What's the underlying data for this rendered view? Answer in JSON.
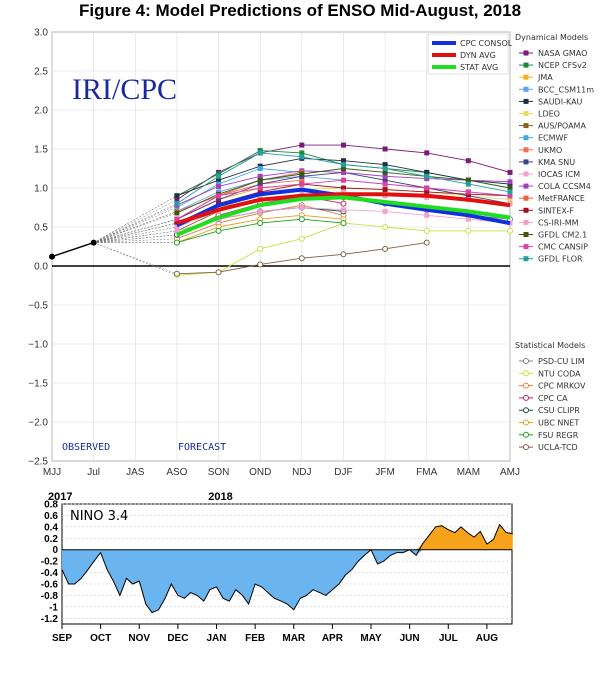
{
  "title": "Figure 4:  Model Predictions of ENSO Mid-August, 2018",
  "chart_data": [
    {
      "type": "line",
      "logo": "IRI/CPC",
      "observed_label": "OBSERVED",
      "forecast_label": "FORECAST",
      "categories": [
        "MJJ",
        "Jul",
        "JAS",
        "ASO",
        "SON",
        "OND",
        "NDJ",
        "DJF",
        "JFM",
        "FMA",
        "MAM",
        "AMJ"
      ],
      "ylim": [
        -2.5,
        3.0
      ],
      "yticks": [
        "3.0",
        "2.5",
        "2.0",
        "1.5",
        "1.0",
        "0.5",
        "0.0",
        "−0.5",
        "−1.0",
        "−1.5",
        "−2.0",
        "−2.5"
      ],
      "ytick_values": [
        3.0,
        2.5,
        2.0,
        1.5,
        1.0,
        0.5,
        0.0,
        -0.5,
        -1.0,
        -1.5,
        -2.0,
        -2.5
      ],
      "observed": [
        0.12,
        0.3
      ],
      "dynamical_legend_title": "Dynamical Models",
      "statistical_legend_title": "Statistical Models",
      "main_series": [
        {
          "name": "CPC CONSOL",
          "color": "#1030e0",
          "values": [
            null,
            null,
            null,
            0.52,
            0.78,
            0.92,
            0.98,
            0.9,
            0.8,
            0.72,
            0.65,
            0.55
          ]
        },
        {
          "name": "DYN AVG",
          "color": "#e01010",
          "values": [
            null,
            null,
            null,
            0.55,
            0.72,
            0.85,
            0.9,
            0.92,
            0.92,
            0.9,
            0.85,
            0.78
          ]
        },
        {
          "name": "STAT AVG",
          "color": "#20dd20",
          "values": [
            null,
            null,
            null,
            0.4,
            0.62,
            0.78,
            0.86,
            0.88,
            0.82,
            0.76,
            0.7,
            0.62
          ]
        }
      ],
      "dynamical_series": [
        {
          "name": "NASA GMAO",
          "color": "#7a1a7a",
          "values": [
            null,
            null,
            null,
            0.85,
            1.2,
            1.45,
            1.55,
            1.55,
            1.5,
            1.45,
            1.35,
            1.2
          ]
        },
        {
          "name": "NCEP CFSv2",
          "color": "#1a8a3a",
          "values": [
            null,
            null,
            null,
            0.9,
            1.18,
            1.48,
            1.45,
            1.3,
            1.25,
            1.2,
            1.1,
            1.0
          ]
        },
        {
          "name": "JMA",
          "color": "#f0b020",
          "values": [
            null,
            null,
            null,
            0.6,
            0.85,
            1.0,
            1.05,
            null,
            null,
            null,
            null,
            null
          ]
        },
        {
          "name": "BCC_CSM11m",
          "color": "#60a0f0",
          "values": [
            null,
            null,
            null,
            0.7,
            0.95,
            1.1,
            1.15,
            1.1,
            1.05,
            1.0,
            0.95,
            0.9
          ]
        },
        {
          "name": "SAUDI-KAU",
          "color": "#203040",
          "values": [
            null,
            null,
            null,
            0.9,
            1.1,
            1.28,
            1.38,
            1.35,
            1.3,
            1.2,
            1.1,
            1.05
          ]
        },
        {
          "name": "LDEO",
          "color": "#e0e060",
          "values": [
            null,
            null,
            null,
            0.55,
            0.75,
            0.9,
            0.98,
            1.0,
            0.98,
            0.95,
            0.9,
            0.85
          ]
        },
        {
          "name": "AUS/POAMA",
          "color": "#8a6020",
          "values": [
            null,
            null,
            null,
            0.45,
            0.7,
            0.85,
            null,
            null,
            null,
            null,
            null,
            null
          ]
        },
        {
          "name": "ECMWF",
          "color": "#40a8e0",
          "values": [
            null,
            null,
            null,
            0.75,
            1.05,
            1.25,
            1.2,
            null,
            null,
            null,
            null,
            null
          ]
        },
        {
          "name": "UKMO",
          "color": "#f07050",
          "values": [
            null,
            null,
            null,
            0.7,
            0.9,
            1.05,
            1.1,
            null,
            null,
            null,
            null,
            null
          ]
        },
        {
          "name": "KMA SNU",
          "color": "#404090",
          "values": [
            null,
            null,
            null,
            0.6,
            0.85,
            1.05,
            1.15,
            1.2,
            1.1,
            1.0,
            0.9,
            0.8
          ]
        },
        {
          "name": "IOCAS ICM",
          "color": "#f0a0d0",
          "values": [
            null,
            null,
            null,
            0.45,
            0.6,
            0.7,
            0.75,
            0.72,
            0.7,
            0.65,
            0.6,
            0.55
          ]
        },
        {
          "name": "COLA CCSM4",
          "color": "#a040c0",
          "values": [
            null,
            null,
            null,
            0.78,
            1.02,
            1.15,
            1.22,
            1.2,
            1.15,
            1.12,
            1.1,
            1.08
          ]
        },
        {
          "name": "MetFRANCE",
          "color": "#f06040",
          "values": [
            null,
            null,
            null,
            0.6,
            0.9,
            1.1,
            1.2,
            null,
            null,
            null,
            null,
            null
          ]
        },
        {
          "name": "SINTEX-F",
          "color": "#a01020",
          "values": [
            null,
            null,
            null,
            0.55,
            0.8,
            0.95,
            1.05,
            1.0,
            0.98,
            0.95,
            0.92,
            0.9
          ]
        },
        {
          "name": "CS-IRI-MM",
          "color": "#f0a0c0",
          "values": [
            null,
            null,
            null,
            0.5,
            0.7,
            0.85,
            0.92,
            0.95,
            0.9,
            0.88,
            0.85,
            0.8
          ]
        },
        {
          "name": "GFDL CM2.1",
          "color": "#3a5a10",
          "values": [
            null,
            null,
            null,
            0.68,
            0.92,
            1.1,
            1.18,
            1.25,
            1.2,
            1.15,
            1.1,
            1.0
          ]
        },
        {
          "name": "CMC CANSIP",
          "color": "#e040a0",
          "values": [
            null,
            null,
            null,
            0.6,
            0.9,
            1.0,
            1.05,
            1.1,
            1.05,
            1.0,
            0.95,
            0.9
          ]
        },
        {
          "name": "GFDL FLOR",
          "color": "#20a0a0",
          "values": [
            null,
            null,
            null,
            0.8,
            1.15,
            1.45,
            1.4,
            1.3,
            1.25,
            1.15,
            1.05,
            0.95
          ]
        }
      ],
      "statistical_series": [
        {
          "name": "PSD-CU LIM",
          "color": "#808080",
          "values": [
            null,
            null,
            null,
            0.55,
            0.75,
            0.85,
            0.9,
            0.88,
            0.8,
            0.72,
            0.65,
            0.6
          ]
        },
        {
          "name": "NTU CODA",
          "color": "#c8e040",
          "values": [
            null,
            null,
            null,
            -0.12,
            -0.08,
            0.22,
            0.35,
            0.55,
            0.5,
            0.45,
            0.45,
            0.45
          ]
        },
        {
          "name": "CPC MRKOV",
          "color": "#e08040",
          "values": [
            null,
            null,
            null,
            0.35,
            0.55,
            0.68,
            0.78,
            0.65,
            null,
            null,
            null,
            null
          ]
        },
        {
          "name": "CPC CA",
          "color": "#c02060",
          "values": [
            null,
            null,
            null,
            0.4,
            0.65,
            0.8,
            0.9,
            0.8,
            null,
            null,
            null,
            null
          ]
        },
        {
          "name": "CSU CLIPR",
          "color": "#105050",
          "values": [
            null,
            null,
            null,
            0.4,
            0.6,
            0.7,
            0.75,
            0.7,
            null,
            null,
            null,
            null
          ]
        },
        {
          "name": "UBC NNET",
          "color": "#e0a020",
          "values": [
            null,
            null,
            null,
            0.3,
            0.5,
            0.6,
            0.65,
            0.6,
            null,
            null,
            null,
            null
          ]
        },
        {
          "name": "FSU REGR",
          "color": "#20a020",
          "values": [
            null,
            null,
            null,
            0.3,
            0.45,
            0.55,
            0.6,
            0.55,
            null,
            null,
            null,
            null
          ]
        },
        {
          "name": "UCLA-TCD",
          "color": "#806040",
          "values": [
            null,
            null,
            null,
            -0.1,
            -0.08,
            0.02,
            0.1,
            0.15,
            0.22,
            0.3,
            null,
            null
          ]
        }
      ]
    },
    {
      "type": "area",
      "label": "NINO  3.4",
      "years": [
        {
          "text": "2017",
          "month_index": 0
        },
        {
          "text": "2018",
          "month_index": 4
        }
      ],
      "months": [
        "SEP",
        "OCT",
        "NOV",
        "DEC",
        "JAN",
        "FEB",
        "MAR",
        "APR",
        "MAY",
        "JUN",
        "JUL",
        "AUG"
      ],
      "ylim": [
        -1.3,
        0.8
      ],
      "yticks": [
        0.8,
        0.6,
        0.4,
        0.2,
        0,
        -0.2,
        -0.4,
        -0.6,
        -0.8,
        -1,
        -1.2
      ],
      "negative_color": "#6ab4f0",
      "positive_color": "#f7a21b",
      "x": [
        0,
        0.17,
        0.33,
        0.5,
        0.67,
        0.83,
        1.0,
        1.17,
        1.33,
        1.5,
        1.67,
        1.83,
        2.0,
        2.17,
        2.33,
        2.5,
        2.67,
        2.83,
        3.0,
        3.17,
        3.33,
        3.5,
        3.67,
        3.83,
        4.0,
        4.17,
        4.33,
        4.5,
        4.67,
        4.83,
        5.0,
        5.17,
        5.33,
        5.5,
        5.67,
        5.83,
        6.0,
        6.17,
        6.33,
        6.5,
        6.67,
        6.83,
        7.0,
        7.17,
        7.33,
        7.5,
        7.67,
        7.83,
        8.0,
        8.17,
        8.33,
        8.5,
        8.67,
        8.83,
        9.0,
        9.17,
        9.33,
        9.5,
        9.67,
        9.83,
        10.0,
        10.17,
        10.33,
        10.5,
        10.67,
        10.83,
        11.0,
        11.17,
        11.33,
        11.5,
        11.67
      ],
      "values": [
        -0.35,
        -0.6,
        -0.6,
        -0.5,
        -0.35,
        -0.2,
        -0.05,
        -0.35,
        -0.55,
        -0.8,
        -0.5,
        -0.6,
        -0.55,
        -0.95,
        -1.1,
        -1.05,
        -0.85,
        -0.6,
        -0.8,
        -0.85,
        -0.75,
        -0.8,
        -0.9,
        -0.7,
        -0.65,
        -0.85,
        -0.9,
        -0.7,
        -0.8,
        -0.95,
        -0.6,
        -0.65,
        -0.75,
        -0.85,
        -0.9,
        -0.95,
        -1.05,
        -0.85,
        -0.8,
        -0.7,
        -0.75,
        -0.8,
        -0.7,
        -0.6,
        -0.45,
        -0.35,
        -0.2,
        -0.1,
        0.0,
        -0.25,
        -0.2,
        -0.1,
        -0.05,
        -0.05,
        0.0,
        -0.1,
        0.1,
        0.25,
        0.4,
        0.42,
        0.35,
        0.3,
        0.4,
        0.3,
        0.22,
        0.32,
        0.1,
        0.18,
        0.44,
        0.3,
        0.28
      ]
    }
  ]
}
